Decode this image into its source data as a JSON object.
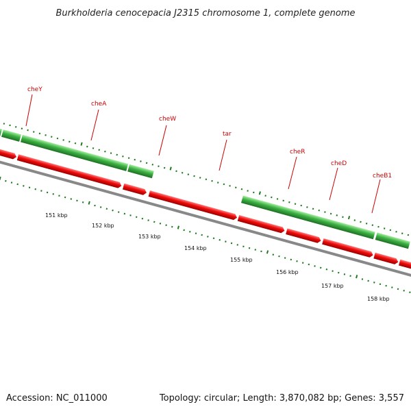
{
  "title": "Burkholderia cenocepacia J2315 chromosome 1, complete genome",
  "footer": {
    "accession": "Accession: NC_011000",
    "summary": "Topology: circular; Length: 3,870,082 bp; Genes: 3,557"
  },
  "colors": {
    "forward_gene": "#3cb043",
    "reverse_gene": "#e8000b",
    "backbone": "#888888",
    "ticks": "#1f7a1f",
    "label": "#cc0000"
  },
  "gene_labels": [
    "cheY",
    "cheA",
    "cheW",
    "tar",
    "cheR",
    "cheD",
    "cheB1"
  ],
  "scale_labels": [
    "151 kbp",
    "152 kbp",
    "153 kbp",
    "154 kbp",
    "155 kbp",
    "156 kbp",
    "157 kbp",
    "158 kbp"
  ]
}
